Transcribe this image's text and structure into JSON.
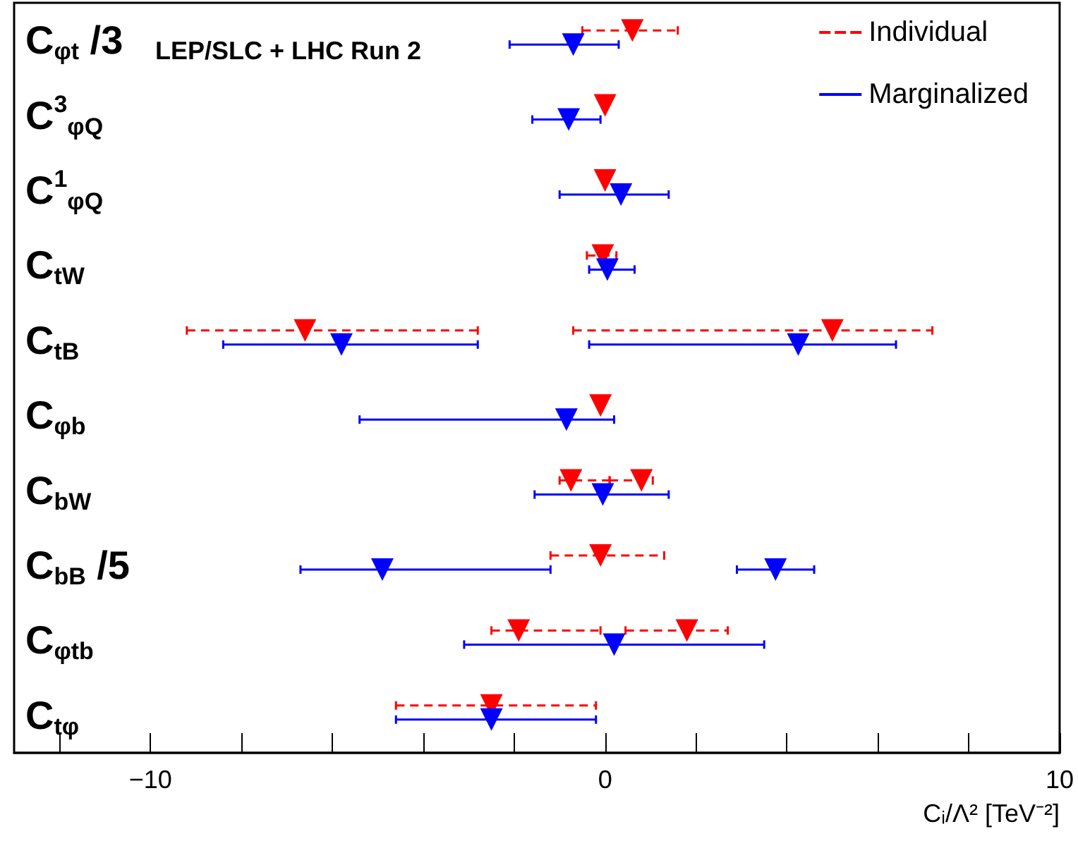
{
  "chart_data": {
    "type": "scatter",
    "orientation": "horizontal",
    "title": "LEP/SLC + LHC Run 2",
    "xlabel": "Cᵢ/Λ² [TeV⁻²]",
    "categories": [
      "C$_{φt}$ /3",
      "C$^{3}$$_{φQ}$",
      "C$^{1}$$_{φQ}$",
      "C$_{tW}$",
      "C$_{tB}$",
      "C$_{φb}$",
      "C$_{bW}$",
      "C$_{bB}$ /5",
      "C$_{φtb}$",
      "C$_{tφ}$"
    ],
    "series": [
      {
        "name": "Individual",
        "color": "#ff0000",
        "line_style": "dashed",
        "values": [
          0.6,
          0.0,
          0.0,
          -0.05,
          -6.6,
          -0.1,
          -0.75,
          -0.1,
          -1.9,
          -2.5
        ],
        "errors": [
          [
            -0.5,
            1.6
          ],
          null,
          null,
          [
            -0.4,
            0.25
          ],
          [
            -9.2,
            -2.8
          ],
          null,
          [
            -1.0,
            0.1
          ],
          [
            -1.2,
            1.3
          ],
          [
            -2.5,
            -0.1
          ],
          [
            -4.6,
            -0.2
          ]
        ]
      },
      {
        "color": "#ff0000",
        "line_style": "dashed",
        "values": [
          null,
          null,
          null,
          null,
          5.0,
          null,
          0.8,
          null,
          1.8,
          null
        ],
        "errors": [
          null,
          null,
          null,
          null,
          [
            -0.7,
            7.2
          ],
          null,
          [
            0.1,
            1.05
          ],
          null,
          [
            0.45,
            2.7
          ],
          null
        ]
      },
      {
        "name": "Marginalized",
        "color": "#0000ff",
        "line_style": "solid",
        "values": [
          -0.7,
          -0.8,
          0.35,
          0.05,
          -5.8,
          -0.85,
          -0.05,
          -4.9,
          0.2,
          -2.5
        ],
        "errors": [
          [
            -2.1,
            0.3
          ],
          [
            -1.6,
            -0.1
          ],
          [
            -1.0,
            1.4
          ],
          [
            -0.35,
            0.65
          ],
          [
            -8.4,
            -2.8
          ],
          [
            -5.4,
            0.2
          ],
          [
            -1.55,
            1.4
          ],
          [
            -6.7,
            -1.2
          ],
          [
            -3.1,
            3.5
          ],
          [
            -4.6,
            -0.2
          ]
        ]
      },
      {
        "color": "#0000ff",
        "line_style": "solid",
        "values": [
          null,
          null,
          null,
          null,
          4.25,
          null,
          null,
          3.75,
          null,
          null
        ],
        "errors": [
          null,
          null,
          null,
          null,
          [
            -0.35,
            6.4
          ],
          null,
          null,
          [
            2.9,
            4.6
          ],
          null,
          null
        ]
      }
    ],
    "xlim": [
      -13,
      10
    ],
    "xticks": [
      {
        "value": -12,
        "label": null
      },
      {
        "value": -10,
        "label": "−10"
      },
      {
        "value": -8,
        "label": null
      },
      {
        "value": -6,
        "label": null
      },
      {
        "value": -4,
        "label": null
      },
      {
        "value": -2,
        "label": null
      },
      0,
      {
        "value": 2,
        "label": null
      },
      {
        "value": 4,
        "label": null
      },
      {
        "value": 6,
        "label": null
      },
      {
        "value": 8,
        "label": null
      },
      10
    ],
    "marker": "triangle",
    "grid": false,
    "legend": "top right"
  }
}
